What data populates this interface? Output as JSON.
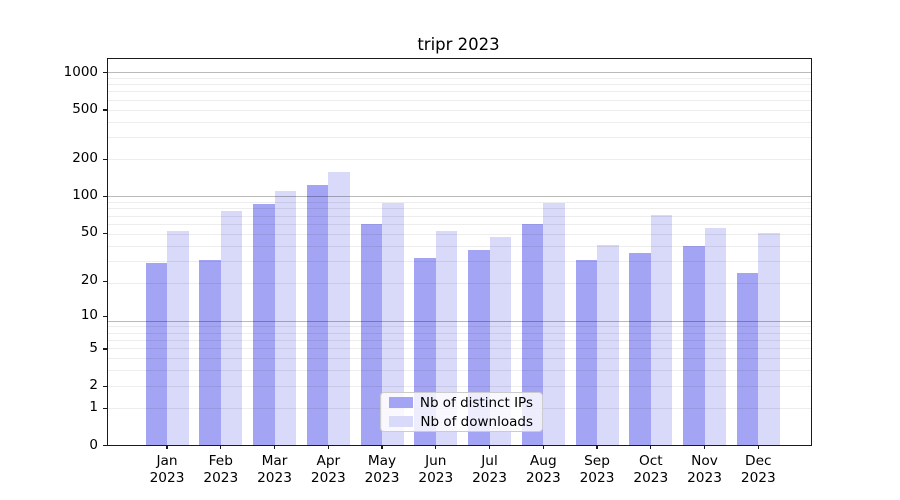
{
  "chart_data": {
    "type": "bar",
    "title": "tripr 2023",
    "year_label": "2023",
    "months": [
      "Jan",
      "Feb",
      "Mar",
      "Apr",
      "May",
      "Jun",
      "Jul",
      "Aug",
      "Sep",
      "Oct",
      "Nov",
      "Dec"
    ],
    "categories": [
      "Jan 2023",
      "Feb 2023",
      "Mar 2023",
      "Apr 2023",
      "May 2023",
      "Jun 2023",
      "Jul 2023",
      "Aug 2023",
      "Sep 2023",
      "Oct 2023",
      "Nov 2023",
      "Dec 2023"
    ],
    "series": [
      {
        "name": "Nb of distinct IPs",
        "color": "#a4a4f4",
        "values": [
          28,
          30,
          86,
          123,
          59,
          31,
          36,
          59,
          30,
          34,
          39,
          23
        ]
      },
      {
        "name": "Nb of downloads",
        "color": "#d9d9f9",
        "values": [
          52,
          76,
          109,
          156,
          88,
          52,
          46,
          88,
          40,
          70,
          55,
          50
        ]
      }
    ],
    "yticks": [
      1000,
      500,
      200,
      100,
      50,
      20,
      10,
      5,
      2,
      1,
      0
    ],
    "yscale": "log10(value+1)",
    "ylim": [
      0,
      1260
    ],
    "grid": "major+minor",
    "legend_position": "lower center",
    "colors": {
      "bar_dark": "#a4a4f4",
      "bar_light": "#d9d9f9",
      "major_grid": "#b9b9b9",
      "minor_grid": "#ececec",
      "spine": "#1a1a1a"
    }
  }
}
